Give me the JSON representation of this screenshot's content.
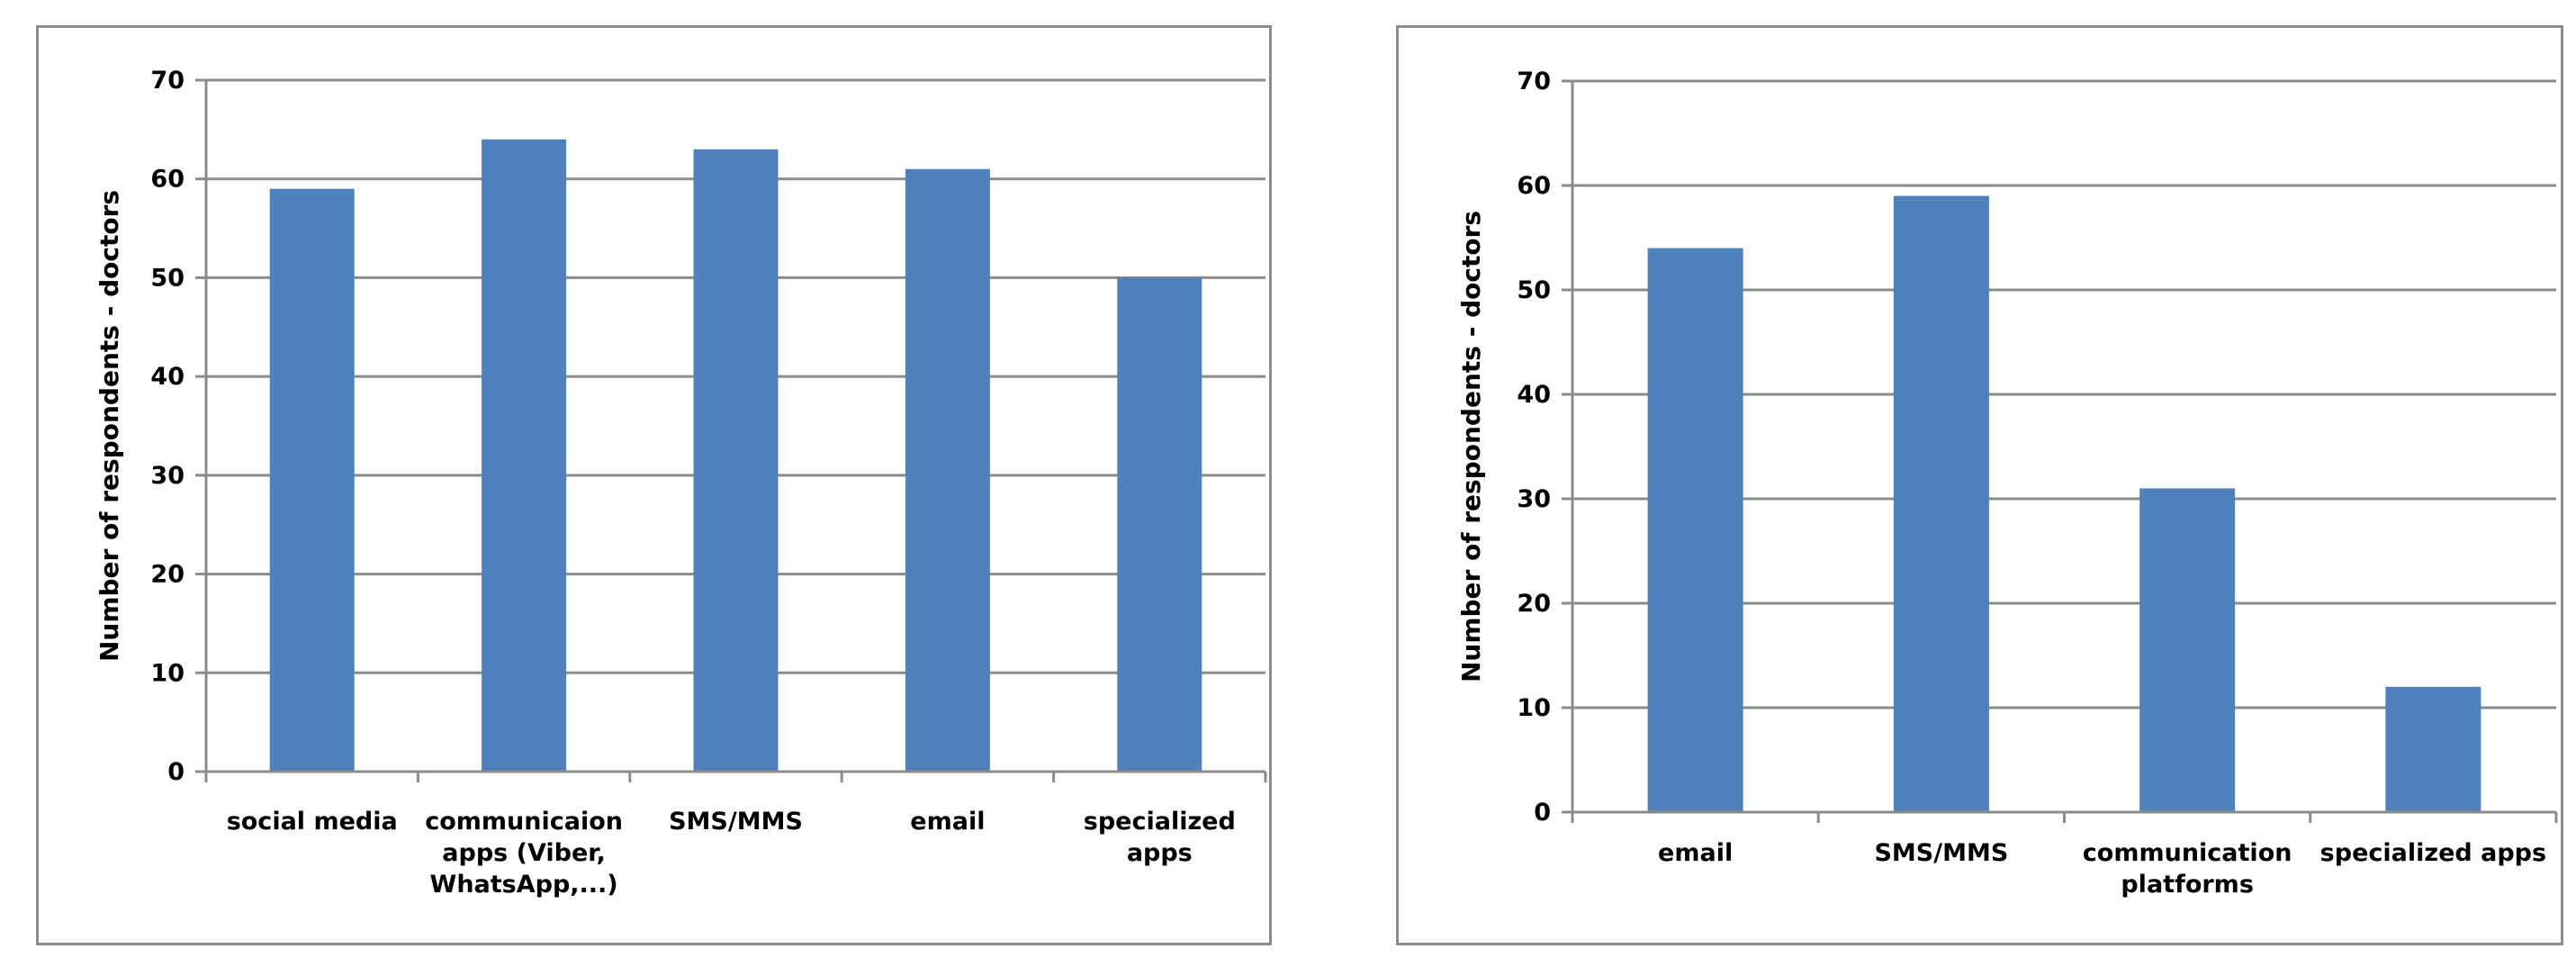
{
  "chart_data": [
    {
      "type": "bar",
      "categories": [
        "social media",
        "communicaion apps (Viber, WhatsApp,...)",
        "SMS/MMS",
        "email",
        "specialized apps"
      ],
      "category_lines": [
        [
          "social media"
        ],
        [
          "communicaion",
          "apps (Viber,",
          "WhatsApp,...)"
        ],
        [
          "SMS/MMS"
        ],
        [
          "email"
        ],
        [
          "specialized",
          "apps"
        ]
      ],
      "values": [
        59,
        64,
        63,
        61,
        50
      ],
      "title": "",
      "xlabel": "",
      "ylabel": "Number of respondents - doctors",
      "ylim": [
        0,
        70
      ],
      "yticks": [
        0,
        10,
        20,
        30,
        40,
        50,
        60,
        70
      ],
      "grid": true,
      "legend": "none",
      "bar_color": "#4f81bd"
    },
    {
      "type": "bar",
      "categories": [
        "email",
        "SMS/MMS",
        "communication platforms",
        "specialized apps"
      ],
      "category_lines": [
        [
          "email"
        ],
        [
          "SMS/MMS"
        ],
        [
          "communication",
          "platforms"
        ],
        [
          "specialized apps"
        ]
      ],
      "values": [
        54,
        59,
        31,
        12
      ],
      "title": "",
      "xlabel": "",
      "ylabel": "Number of respondents - doctors",
      "ylim": [
        0,
        70
      ],
      "yticks": [
        0,
        10,
        20,
        30,
        40,
        50,
        60,
        70
      ],
      "grid": true,
      "legend": "none",
      "bar_color": "#4f81bd"
    }
  ]
}
